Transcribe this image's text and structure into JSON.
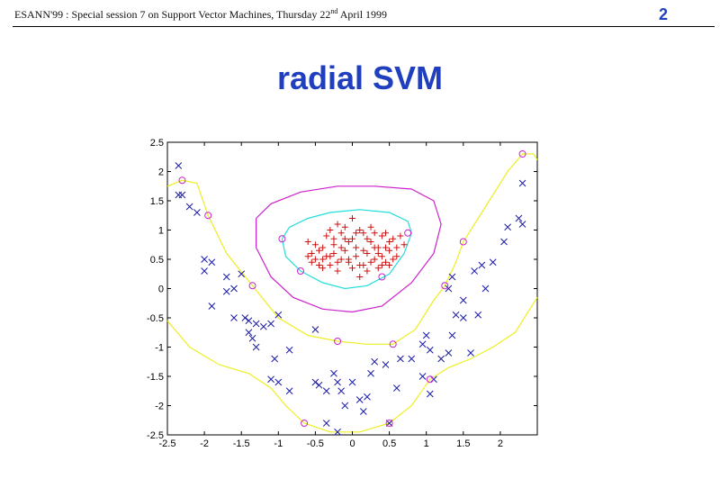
{
  "header": {
    "text_before_sup": "ESANN'99 :  Special session 7 on Support Vector Machines, Thursday 22",
    "sup": "nd",
    "text_after_sup": " April 1999",
    "page_number": "2"
  },
  "title": "radial SVM",
  "colors": {
    "title": "#1f3fbf",
    "plus": "#cc1111",
    "cross": "#1a1aa8",
    "support_vector": "#cc22cc",
    "contour_inner": "#22dddd",
    "contour_outer": "#cc22cc",
    "contour_margin": "#eeee22"
  },
  "chart_data": {
    "type": "scatter",
    "title": "",
    "xlabel": "",
    "ylabel": "",
    "xlim": [
      -2.5,
      2.5
    ],
    "ylim": [
      -2.5,
      2.5
    ],
    "xticks": [
      -2.5,
      -2,
      -1.5,
      -1,
      -0.5,
      0,
      0.5,
      1,
      1.5,
      2
    ],
    "yticks": [
      -2.5,
      -2,
      -1.5,
      -1,
      -0.5,
      0,
      0.5,
      1,
      1.5,
      2,
      2.5
    ],
    "grid": false,
    "series": [
      {
        "marker": "plus",
        "color": "#cc1111",
        "points": [
          [
            -0.6,
            0.8
          ],
          [
            -0.55,
            0.6
          ],
          [
            -0.5,
            0.5
          ],
          [
            -0.45,
            0.4
          ],
          [
            -0.4,
            0.7
          ],
          [
            -0.35,
            0.9
          ],
          [
            -0.3,
            0.55
          ],
          [
            -0.25,
            0.75
          ],
          [
            -0.2,
            0.45
          ],
          [
            -0.15,
            0.95
          ],
          [
            -0.1,
            0.65
          ],
          [
            -0.05,
            0.5
          ],
          [
            0.0,
            0.85
          ],
          [
            0.05,
            0.7
          ],
          [
            0.1,
            0.4
          ],
          [
            0.15,
            0.95
          ],
          [
            0.2,
            0.6
          ],
          [
            0.25,
            0.8
          ],
          [
            0.3,
            0.5
          ],
          [
            0.35,
            0.7
          ],
          [
            0.4,
            0.9
          ],
          [
            0.45,
            0.45
          ],
          [
            0.5,
            0.65
          ],
          [
            0.55,
            0.85
          ],
          [
            0.6,
            0.55
          ],
          [
            -0.5,
            0.75
          ],
          [
            -0.4,
            0.35
          ],
          [
            -0.3,
            1.0
          ],
          [
            -0.2,
            0.3
          ],
          [
            -0.1,
            1.05
          ],
          [
            0.0,
            0.35
          ],
          [
            0.1,
            1.0
          ],
          [
            0.2,
            0.3
          ],
          [
            0.3,
            0.95
          ],
          [
            0.4,
            0.4
          ],
          [
            0.5,
            0.8
          ],
          [
            0.6,
            0.7
          ],
          [
            0.65,
            0.9
          ],
          [
            -0.35,
            0.55
          ],
          [
            -0.25,
            0.6
          ],
          [
            -0.15,
            0.7
          ],
          [
            -0.05,
            0.8
          ],
          [
            0.05,
            0.55
          ],
          [
            0.15,
            0.65
          ],
          [
            0.25,
            0.45
          ],
          [
            0.35,
            0.6
          ],
          [
            0.45,
            0.7
          ],
          [
            0.55,
            0.5
          ],
          [
            -0.45,
            0.65
          ],
          [
            -0.15,
            0.5
          ],
          [
            0.05,
            0.95
          ],
          [
            0.25,
            1.05
          ],
          [
            0.4,
            0.55
          ],
          [
            -0.6,
            0.55
          ],
          [
            0.7,
            0.75
          ],
          [
            -0.1,
            0.85
          ],
          [
            0.2,
            0.85
          ],
          [
            0.0,
            1.2
          ],
          [
            -0.2,
            1.1
          ],
          [
            0.35,
            0.35
          ],
          [
            -0.4,
            0.5
          ],
          [
            0.1,
            0.2
          ],
          [
            -0.3,
            0.4
          ],
          [
            0.5,
            0.4
          ],
          [
            -0.05,
            0.45
          ],
          [
            0.15,
            0.4
          ],
          [
            -0.55,
            0.45
          ],
          [
            0.3,
            0.7
          ],
          [
            -0.25,
            0.85
          ],
          [
            0.45,
            0.95
          ]
        ]
      },
      {
        "marker": "cross",
        "color": "#1a1aa8",
        "points": [
          [
            -2.35,
            2.1
          ],
          [
            -2.35,
            1.6
          ],
          [
            -2.3,
            1.6
          ],
          [
            -2.2,
            1.4
          ],
          [
            -2.1,
            1.3
          ],
          [
            -2.0,
            0.5
          ],
          [
            -1.9,
            0.45
          ],
          [
            -2.0,
            0.3
          ],
          [
            -1.7,
            0.2
          ],
          [
            -1.6,
            0.0
          ],
          [
            -1.7,
            -0.05
          ],
          [
            -1.5,
            0.25
          ],
          [
            -1.9,
            -0.3
          ],
          [
            -1.6,
            -0.5
          ],
          [
            -1.45,
            -0.5
          ],
          [
            -1.4,
            -0.55
          ],
          [
            -1.3,
            -0.6
          ],
          [
            -1.4,
            -0.75
          ],
          [
            -1.35,
            -0.85
          ],
          [
            -1.3,
            -1.0
          ],
          [
            -1.2,
            -0.65
          ],
          [
            -1.1,
            -0.6
          ],
          [
            -1.0,
            -0.45
          ],
          [
            -0.85,
            -1.05
          ],
          [
            -1.05,
            -1.2
          ],
          [
            -1.1,
            -1.55
          ],
          [
            -1.0,
            -1.6
          ],
          [
            -0.85,
            -1.75
          ],
          [
            -0.5,
            -0.7
          ],
          [
            -0.5,
            -1.6
          ],
          [
            -0.45,
            -1.65
          ],
          [
            -0.35,
            -1.75
          ],
          [
            -0.25,
            -1.45
          ],
          [
            -0.2,
            -1.6
          ],
          [
            -0.15,
            -1.75
          ],
          [
            -0.1,
            -2.0
          ],
          [
            0.0,
            -1.6
          ],
          [
            0.1,
            -1.9
          ],
          [
            0.15,
            -2.1
          ],
          [
            0.2,
            -1.85
          ],
          [
            0.25,
            -1.45
          ],
          [
            0.3,
            -1.25
          ],
          [
            0.45,
            -1.3
          ],
          [
            0.6,
            -1.7
          ],
          [
            0.65,
            -1.2
          ],
          [
            0.8,
            -1.2
          ],
          [
            0.95,
            -0.95
          ],
          [
            0.95,
            -1.5
          ],
          [
            1.0,
            -0.8
          ],
          [
            1.05,
            -1.05
          ],
          [
            1.05,
            -1.8
          ],
          [
            1.1,
            -1.55
          ],
          [
            1.2,
            -1.2
          ],
          [
            1.3,
            -1.1
          ],
          [
            1.35,
            -0.8
          ],
          [
            1.4,
            -0.45
          ],
          [
            1.5,
            -0.5
          ],
          [
            1.5,
            -0.2
          ],
          [
            1.6,
            -1.1
          ],
          [
            1.3,
            0.0
          ],
          [
            1.35,
            0.2
          ],
          [
            1.65,
            0.3
          ],
          [
            1.7,
            -0.45
          ],
          [
            1.75,
            0.4
          ],
          [
            1.8,
            0.0
          ],
          [
            1.9,
            0.45
          ],
          [
            2.05,
            0.8
          ],
          [
            2.1,
            1.05
          ],
          [
            2.25,
            1.2
          ],
          [
            2.3,
            1.1
          ],
          [
            2.3,
            1.8
          ],
          [
            -0.35,
            -2.3
          ],
          [
            -0.2,
            -2.45
          ],
          [
            0.5,
            -2.3
          ]
        ]
      },
      {
        "marker": "circle",
        "color": "#cc22cc",
        "points": [
          [
            -2.3,
            1.85
          ],
          [
            -1.95,
            1.25
          ],
          [
            -1.35,
            0.05
          ],
          [
            -0.95,
            0.85
          ],
          [
            -0.7,
            0.3
          ],
          [
            -0.2,
            -0.9
          ],
          [
            0.4,
            0.2
          ],
          [
            0.75,
            0.95
          ],
          [
            0.55,
            -0.95
          ],
          [
            1.05,
            -1.55
          ],
          [
            1.25,
            0.05
          ],
          [
            1.5,
            0.8
          ],
          [
            2.3,
            2.3
          ],
          [
            -0.65,
            -2.3
          ],
          [
            0.5,
            -2.3
          ]
        ]
      }
    ],
    "contours": [
      {
        "level": "inner",
        "color": "#22dddd",
        "path": [
          [
            -0.95,
            0.85
          ],
          [
            -0.85,
            1.05
          ],
          [
            -0.6,
            1.2
          ],
          [
            -0.3,
            1.3
          ],
          [
            0.1,
            1.35
          ],
          [
            0.5,
            1.3
          ],
          [
            0.75,
            1.15
          ],
          [
            0.8,
            0.95
          ],
          [
            0.7,
            0.6
          ],
          [
            0.5,
            0.25
          ],
          [
            0.2,
            0.05
          ],
          [
            -0.1,
            0.0
          ],
          [
            -0.4,
            0.1
          ],
          [
            -0.7,
            0.3
          ],
          [
            -0.9,
            0.55
          ],
          [
            -0.95,
            0.85
          ]
        ]
      },
      {
        "level": "outer",
        "color": "#cc22cc",
        "path": [
          [
            -1.3,
            1.2
          ],
          [
            -1.1,
            1.45
          ],
          [
            -0.7,
            1.65
          ],
          [
            -0.2,
            1.75
          ],
          [
            0.3,
            1.75
          ],
          [
            0.8,
            1.7
          ],
          [
            1.1,
            1.5
          ],
          [
            1.2,
            1.1
          ],
          [
            1.1,
            0.6
          ],
          [
            0.8,
            0.1
          ],
          [
            0.4,
            -0.3
          ],
          [
            0.0,
            -0.4
          ],
          [
            -0.4,
            -0.35
          ],
          [
            -0.8,
            -0.15
          ],
          [
            -1.1,
            0.2
          ],
          [
            -1.3,
            0.7
          ],
          [
            -1.3,
            1.2
          ]
        ]
      },
      {
        "level": "margin-upper",
        "color": "#eeee22",
        "path": [
          [
            -2.5,
            1.75
          ],
          [
            -2.3,
            1.85
          ],
          [
            -2.1,
            1.8
          ],
          [
            -1.95,
            1.25
          ],
          [
            -1.7,
            0.6
          ],
          [
            -1.35,
            0.05
          ],
          [
            -1.0,
            -0.5
          ],
          [
            -0.6,
            -0.8
          ],
          [
            -0.2,
            -0.9
          ],
          [
            0.2,
            -0.95
          ],
          [
            0.55,
            -0.95
          ],
          [
            0.85,
            -0.7
          ],
          [
            1.1,
            -0.2
          ],
          [
            1.25,
            0.05
          ],
          [
            1.4,
            0.45
          ],
          [
            1.5,
            0.8
          ],
          [
            1.8,
            1.4
          ],
          [
            2.1,
            2.0
          ],
          [
            2.3,
            2.3
          ],
          [
            2.45,
            2.3
          ],
          [
            2.5,
            2.2
          ]
        ]
      },
      {
        "level": "margin-lower",
        "color": "#eeee22",
        "path": [
          [
            -2.5,
            -0.55
          ],
          [
            -2.2,
            -1.0
          ],
          [
            -1.8,
            -1.3
          ],
          [
            -1.4,
            -1.45
          ],
          [
            -1.1,
            -1.7
          ],
          [
            -0.9,
            -2.0
          ],
          [
            -0.65,
            -2.3
          ],
          [
            -0.3,
            -2.45
          ],
          [
            0.1,
            -2.45
          ],
          [
            0.5,
            -2.3
          ],
          [
            0.8,
            -2.0
          ],
          [
            1.05,
            -1.55
          ],
          [
            1.3,
            -1.35
          ],
          [
            1.6,
            -1.2
          ],
          [
            1.9,
            -1.0
          ],
          [
            2.2,
            -0.75
          ],
          [
            2.5,
            -0.15
          ]
        ]
      }
    ]
  }
}
